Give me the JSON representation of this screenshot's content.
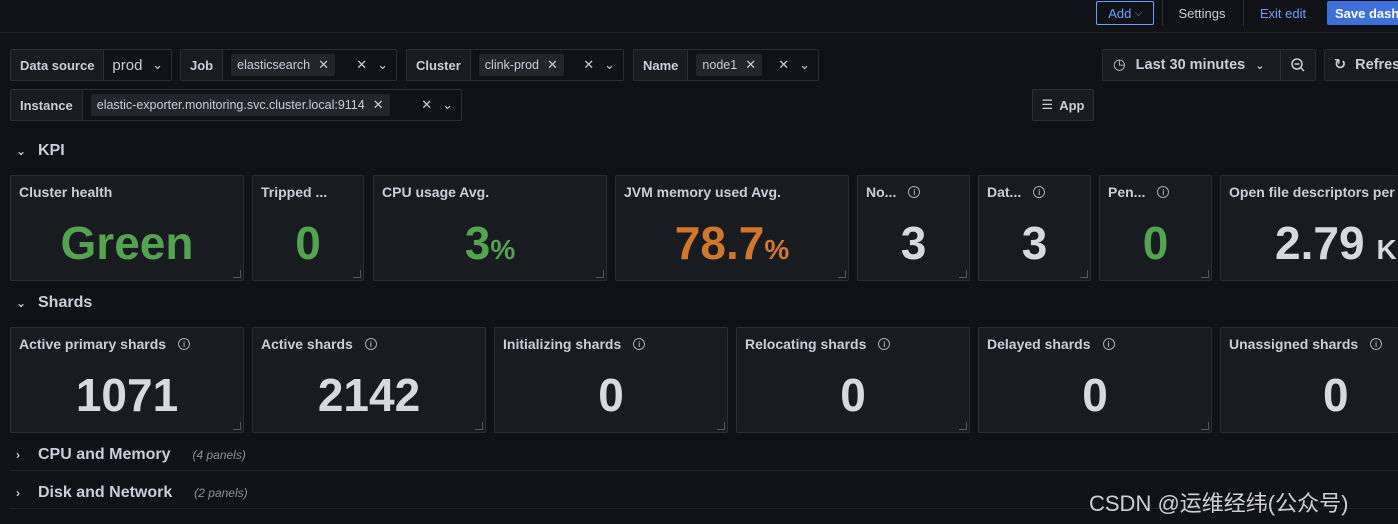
{
  "toolbar": {
    "add_label": "Add",
    "settings_label": "Settings",
    "exit_label": "Exit edit",
    "save_label": "Save dashb"
  },
  "variables": {
    "datasource": {
      "label": "Data source",
      "value": "prod"
    },
    "job": {
      "label": "Job",
      "value": "elasticsearch"
    },
    "cluster": {
      "label": "Cluster",
      "value": "clink-prod"
    },
    "name": {
      "label": "Name",
      "value": "node1"
    },
    "instance": {
      "label": "Instance",
      "value": "elastic-exporter.monitoring.svc.cluster.local:9114"
    }
  },
  "time": {
    "range_label": "Last 30 minutes",
    "refresh_label": "Refresh"
  },
  "app_button_label": "App",
  "rows": {
    "kpi": {
      "title": "KPI"
    },
    "shards": {
      "title": "Shards"
    },
    "cpu": {
      "title": "CPU and Memory",
      "count": "(4 panels)"
    },
    "disk": {
      "title": "Disk and Network",
      "count": "(2 panels)"
    }
  },
  "kpi_panels": [
    {
      "title": "Cluster health",
      "value": "Green",
      "unit": ""
    },
    {
      "title": "Tripped ...",
      "value": "0",
      "unit": ""
    },
    {
      "title": "CPU usage Avg.",
      "value": "3",
      "unit": "%"
    },
    {
      "title": "JVM memory used Avg.",
      "value": "78.7",
      "unit": "%"
    },
    {
      "title": "No...",
      "value": "3",
      "unit": ""
    },
    {
      "title": "Dat...",
      "value": "3",
      "unit": ""
    },
    {
      "title": "Pen...",
      "value": "0",
      "unit": ""
    },
    {
      "title": "Open file descriptors per",
      "value": "2.79",
      "unit": "K"
    }
  ],
  "shard_panels": [
    {
      "title": "Active primary shards",
      "value": "1071"
    },
    {
      "title": "Active shards",
      "value": "2142"
    },
    {
      "title": "Initializing shards",
      "value": "0"
    },
    {
      "title": "Relocating shards",
      "value": "0"
    },
    {
      "title": "Delayed shards",
      "value": "0"
    },
    {
      "title": "Unassigned shards",
      "value": "0"
    }
  ],
  "colors": {
    "green": "#53a351",
    "orange": "#d1772b",
    "accent": "#6e9fff"
  },
  "watermark": "CSDN @运维经纬(公众号)"
}
